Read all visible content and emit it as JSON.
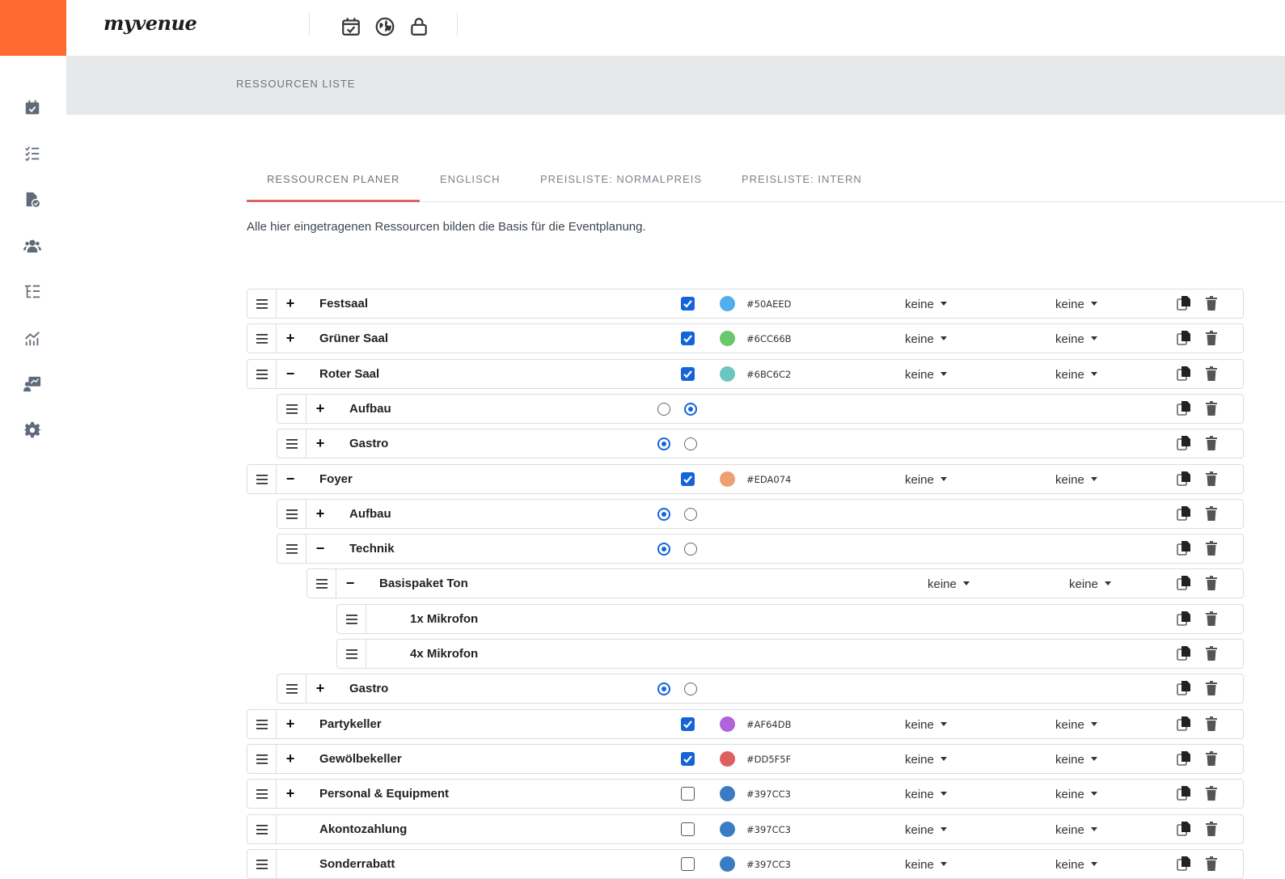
{
  "app": {
    "logo_text": "myvenue",
    "brand_color": "#ff6a33"
  },
  "topbar": {
    "icons": [
      "calendar-check-icon",
      "globe-icon",
      "lock-icon"
    ]
  },
  "sidebar": {
    "icons": [
      "calendar-icon",
      "checklist-icon",
      "document-check-icon",
      "users-icon",
      "tree-list-icon",
      "chart-icon",
      "presentation-icon",
      "gear-icon"
    ]
  },
  "page": {
    "title": "RESSOURCEN LISTE"
  },
  "tabs": [
    "RESSOURCEN PLANER",
    "ENGLISCH",
    "PREISLISTE: NORMALPREIS",
    "PREISLISTE: INTERN"
  ],
  "active_tab": "RESSOURCEN PLANER",
  "intro": "Alle hier eingetragenen Ressourcen bilden die Basis für die Eventplanung.",
  "resources": [
    {
      "name": "Festsaal",
      "level": 0,
      "toggle": "+",
      "checked": true,
      "color": "#50AEED",
      "color_label": "#50AEED",
      "dd1": "keine",
      "dd2": "keine"
    },
    {
      "name": "Grüner Saal",
      "level": 0,
      "toggle": "+",
      "checked": true,
      "color": "#6CC66B",
      "color_label": "#6CC66B",
      "dd1": "keine",
      "dd2": "keine"
    },
    {
      "name": "Roter Saal",
      "level": 0,
      "toggle": "−",
      "checked": true,
      "color": "#6BC6C2",
      "color_label": "#6BC6C2",
      "dd1": "keine",
      "dd2": "keine"
    },
    {
      "name": "Aufbau",
      "level": 1,
      "toggle": "+",
      "radio": 2
    },
    {
      "name": "Gastro",
      "level": 1,
      "toggle": "+",
      "radio": 1
    },
    {
      "name": "Foyer",
      "level": 0,
      "toggle": "−",
      "checked": true,
      "color": "#EDA074",
      "color_label": "#EDA074",
      "dd1": "keine",
      "dd2": "keine"
    },
    {
      "name": "Aufbau",
      "level": 1,
      "toggle": "+",
      "radio": 1
    },
    {
      "name": "Technik",
      "level": 1,
      "toggle": "−",
      "radio": 1
    },
    {
      "name": "Basispaket Ton",
      "level": 2,
      "toggle": "−",
      "dd1": "keine",
      "dd2": "keine"
    },
    {
      "name": "1x Mikrofon",
      "level": 3,
      "toggle": ""
    },
    {
      "name": "4x Mikrofon",
      "level": 3,
      "toggle": ""
    },
    {
      "name": "Gastro",
      "level": 1,
      "toggle": "+",
      "radio": 1
    },
    {
      "name": "Partykeller",
      "level": 0,
      "toggle": "+",
      "checked": true,
      "color": "#AF64DB",
      "color_label": "#AF64DB",
      "dd1": "keine",
      "dd2": "keine"
    },
    {
      "name": "Gewölbekeller",
      "level": 0,
      "toggle": "+",
      "checked": true,
      "color": "#DD5F5F",
      "color_label": "#DD5F5F",
      "dd1": "keine",
      "dd2": "keine"
    },
    {
      "name": "Personal & Equipment",
      "level": 0,
      "toggle": "+",
      "checked": false,
      "color": "#397CC3",
      "color_label": "#397CC3",
      "dd1": "keine",
      "dd2": "keine"
    },
    {
      "name": "Akontozahlung",
      "level": 0,
      "toggle": "",
      "checked": false,
      "color": "#397CC3",
      "color_label": "#397CC3",
      "dd1": "keine",
      "dd2": "keine"
    },
    {
      "name": "Sonderrabatt",
      "level": 0,
      "toggle": "",
      "checked": false,
      "color": "#397CC3",
      "color_label": "#397CC3",
      "dd1": "keine",
      "dd2": "keine"
    }
  ]
}
